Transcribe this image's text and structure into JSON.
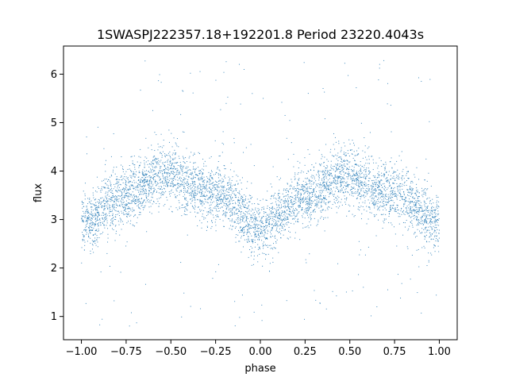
{
  "chart_data": {
    "type": "scatter",
    "title": "1SWASPJ222357.18+192201.8 Period 23220.4043s",
    "xlabel": "phase",
    "ylabel": "flux",
    "xlim": [
      -1.1,
      1.1
    ],
    "ylim": [
      0.52,
      6.58
    ],
    "xticks": [
      -1.0,
      -0.75,
      -0.5,
      -0.25,
      0.0,
      0.25,
      0.5,
      0.75,
      1.0
    ],
    "xtick_labels": [
      "−1.00",
      "−0.75",
      "−0.50",
      "−0.25",
      "0.00",
      "0.25",
      "0.50",
      "0.75",
      "1.00"
    ],
    "yticks": [
      1,
      2,
      3,
      4,
      5,
      6
    ],
    "ytick_labels": [
      "1",
      "2",
      "3",
      "4",
      "5",
      "6"
    ],
    "grid": false,
    "marker_color": "#1f77b4",
    "series": [
      {
        "name": "",
        "x_range": [
          -1.0,
          1.0
        ],
        "trend_phase": [
          -1.0,
          -0.75,
          -0.55,
          -0.25,
          0.0,
          0.25,
          0.45,
          0.75,
          1.0
        ],
        "trend_flux": [
          2.95,
          3.5,
          3.9,
          3.55,
          2.85,
          3.45,
          3.9,
          3.55,
          2.95
        ],
        "band_half_width": 0.55,
        "outlier_range": [
          0.8,
          6.3
        ]
      }
    ]
  }
}
